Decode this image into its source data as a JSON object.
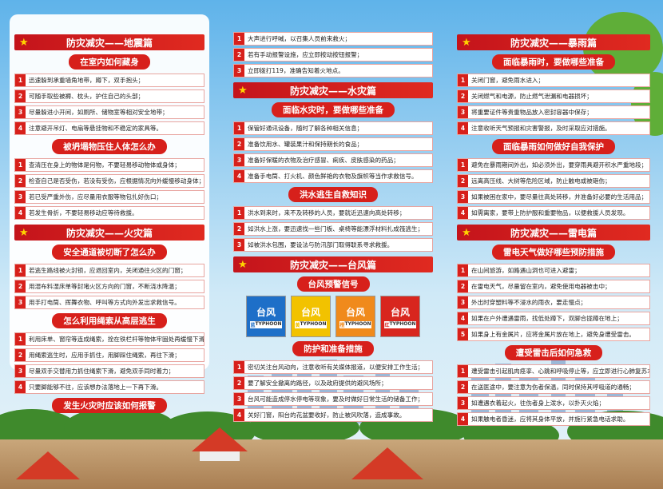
{
  "columns": [
    {
      "blocks": [
        {
          "kind": "header",
          "text": "防灾减灾——地震篇"
        },
        {
          "kind": "sub",
          "text": "在室内如何藏身"
        },
        {
          "kind": "list",
          "items": [
            {
              "num": 1,
              "text": "迅速躲到承重墙角地带，蹲下，双手抱头；"
            },
            {
              "num": 2,
              "text": "可随手取些被褥、枕头，护住自己的头部；"
            },
            {
              "num": 3,
              "text": "尽量躲进小开间，如厕所、储物室等相对安全地带；"
            },
            {
              "num": 4,
              "text": "注意避开吊灯、电扇等悬挂物和不稳定的家具等。"
            }
          ]
        },
        {
          "kind": "sub",
          "text": "被坍塌物压住人体怎么办"
        },
        {
          "kind": "list",
          "items": [
            {
              "num": 1,
              "text": "查清压在身上的物体是何物，不要轻易移动物体或身体；"
            },
            {
              "num": 2,
              "text": "检查自己是否受伤，若没有受伤，应根据情况向外缓慢移动身体；"
            },
            {
              "num": 3,
              "text": "若已受严重外伤，应尽量用衣服等物包扎好伤口；"
            },
            {
              "num": 4,
              "text": "若发生骨折，不要轻易移动应等待救援。"
            }
          ]
        },
        {
          "kind": "header",
          "text": "防灾减灾——火灾篇"
        },
        {
          "kind": "sub",
          "text": "安全通道被切断了怎么办"
        },
        {
          "kind": "list",
          "items": [
            {
              "num": 1,
              "text": "若逃生路线被火封锁，应退回室内，关闭通往火区的门窗；"
            },
            {
              "num": 2,
              "text": "用湿布料湿床单等封堵火区方向的门窗，不断浇水降温；"
            },
            {
              "num": 3,
              "text": "用手打电筒、挥舞衣物、呼叫等方式向外发出求救信号。"
            }
          ]
        },
        {
          "kind": "sub",
          "text": "怎么利用绳索从高层逃生"
        },
        {
          "kind": "list",
          "items": [
            {
              "num": 1,
              "text": "利用床单、窗帘等连成绳索，拴在铁栏杆等物体牢固处再缓慢下滑；"
            },
            {
              "num": 2,
              "text": "用绳索逃生时，应用手抓住，用脚踩住绳索，再往下滑；"
            },
            {
              "num": 3,
              "text": "尽量双手交替用力抓住绳索下滑，避免双手同时着力；"
            },
            {
              "num": 4,
              "text": "只要脚能够不往，应该想办法落地上一下再下滑。"
            }
          ]
        },
        {
          "kind": "sub",
          "text": "发生火灾时应该如何报警"
        }
      ]
    },
    {
      "blocks": [
        {
          "kind": "list",
          "items": [
            {
              "num": 1,
              "text": "大声进行呼喊，以召集人员前来救火；"
            },
            {
              "num": 2,
              "text": "若有手动报警设施，应立即按动按钮报警；"
            },
            {
              "num": 3,
              "text": "立即拨打119，准确告知着火地点。"
            }
          ]
        },
        {
          "kind": "header",
          "text": "防灾减灾——水灾篇"
        },
        {
          "kind": "sub",
          "text": "面临水灾时，要做哪些准备"
        },
        {
          "kind": "list",
          "items": [
            {
              "num": 1,
              "text": "保管好通讯设备，随时了解各种相关信息；"
            },
            {
              "num": 2,
              "text": "准备饮用水、罐装果汁和保持期长的食品；"
            },
            {
              "num": 3,
              "text": "准备好保暖的衣物及治疗感冒、痢疾、皮肤感染的药品；"
            },
            {
              "num": 4,
              "text": "准备手电筒、打火机、颜色鲜艳的衣物及旗帜等当作求救信号。"
            }
          ]
        },
        {
          "kind": "sub",
          "text": "洪水逃生自救知识"
        },
        {
          "kind": "list",
          "items": [
            {
              "num": 1,
              "text": "洪水到来时，来不及转移的人员，要就近迅速向高处转移；"
            },
            {
              "num": 2,
              "text": "如洪水上涨，要迅速找一些门板、桌椅等能漂浮材料扎成筏逃生；"
            },
            {
              "num": 3,
              "text": "如被洪水包围，要设法与防汛部门取得联系寻求救援。"
            }
          ]
        },
        {
          "kind": "header",
          "text": "防灾减灾——台风篇"
        },
        {
          "kind": "sub",
          "text": "台风预警信号"
        },
        {
          "kind": "signals",
          "items": [
            {
              "label": "台风",
              "level": "蓝",
              "en": "TYPHOON",
              "color": "#1e6fc8"
            },
            {
              "label": "台风",
              "level": "黄",
              "en": "TYPHOON",
              "color": "#f2c200"
            },
            {
              "label": "台风",
              "level": "橙",
              "en": "TYPHOON",
              "color": "#f08a1c"
            },
            {
              "label": "台风",
              "level": "红",
              "en": "TYPHOON",
              "color": "#d8261e"
            }
          ]
        },
        {
          "kind": "sub",
          "text": "防护和准备措施"
        },
        {
          "kind": "list",
          "items": [
            {
              "num": 1,
              "text": "密切关注台风动向，注意收听有关媒体报道，以便安排工作生活；"
            },
            {
              "num": 2,
              "text": "要了解安全撤离的路径，以及政府提供的避风场所；"
            },
            {
              "num": 3,
              "text": "台风可能造成停水停电等现象，要及时做好日常生活的储备工作；"
            },
            {
              "num": 4,
              "text": "关好门窗，阳台的花盆要收好，防止被风吹落，造成事故。"
            }
          ]
        }
      ]
    },
    {
      "blocks": [
        {
          "kind": "header",
          "text": "防灾减灾——暴雨篇"
        },
        {
          "kind": "sub",
          "text": "面临暴雨时，要做哪些准备"
        },
        {
          "kind": "list",
          "items": [
            {
              "num": 1,
              "text": "关闭门窗，避免雨水进入；"
            },
            {
              "num": 2,
              "text": "关闭燃气和电源，防止燃气泄漏和电器损坏；"
            },
            {
              "num": 3,
              "text": "将重要证件等贵重物品放入密封容器中保存；"
            },
            {
              "num": 4,
              "text": "注意收听天气预报和灾害警报，及时采取应对措施。"
            }
          ]
        },
        {
          "kind": "sub",
          "text": "面临暴雨如何做好自我保护"
        },
        {
          "kind": "list",
          "items": [
            {
              "num": 1,
              "text": "避免在暴雨期间外出，如必须外出，要穿雨具避开积水严重地段；"
            },
            {
              "num": 2,
              "text": "远离高压线、大树等危险区域，防止触电或被砸伤；"
            },
            {
              "num": 3,
              "text": "如果被困在家中，要尽量往高处转移，并准备好必要的生活用品；"
            },
            {
              "num": 4,
              "text": "如需离家，要带上防护服和重要物品，以便救援人员发现。"
            }
          ]
        },
        {
          "kind": "header",
          "text": "防灾减灾——雷电篇"
        },
        {
          "kind": "sub",
          "text": "雷电天气做好哪些预防措施"
        },
        {
          "kind": "list",
          "items": [
            {
              "num": 1,
              "text": "在山间旅游，如路遇山洞也可进入避雷；"
            },
            {
              "num": 2,
              "text": "在雷电天气，尽量留在室内，避免使用电器被击中；"
            },
            {
              "num": 3,
              "text": "外出时穿塑料等不浸水的雨衣，要走慢点；"
            },
            {
              "num": 4,
              "text": "如果在户外遭遇雷雨，找低处蹲下，双脚合拢蹲在地上；"
            },
            {
              "num": 5,
              "text": "如果身上有金属片，应将金属片放在地上，避免身遭受雷击。"
            }
          ]
        },
        {
          "kind": "sub",
          "text": "遭受雷击后如何急救"
        },
        {
          "kind": "list",
          "items": [
            {
              "num": 1,
              "text": "遭受雷击引起肌肉痉挛、心跳和呼吸停止等，应立即进行心肺复苏术；"
            },
            {
              "num": 2,
              "text": "在送医途中，要注意为伤者保温，同时保持其呼吸道的通畅；"
            },
            {
              "num": 3,
              "text": "如遭遇衣着起火，往伤者身上泼水，以扑灭火焰；"
            },
            {
              "num": 4,
              "text": "如果触电者昏迷，应将其身体平放，并施行紧急电话求助。"
            }
          ]
        }
      ]
    }
  ]
}
